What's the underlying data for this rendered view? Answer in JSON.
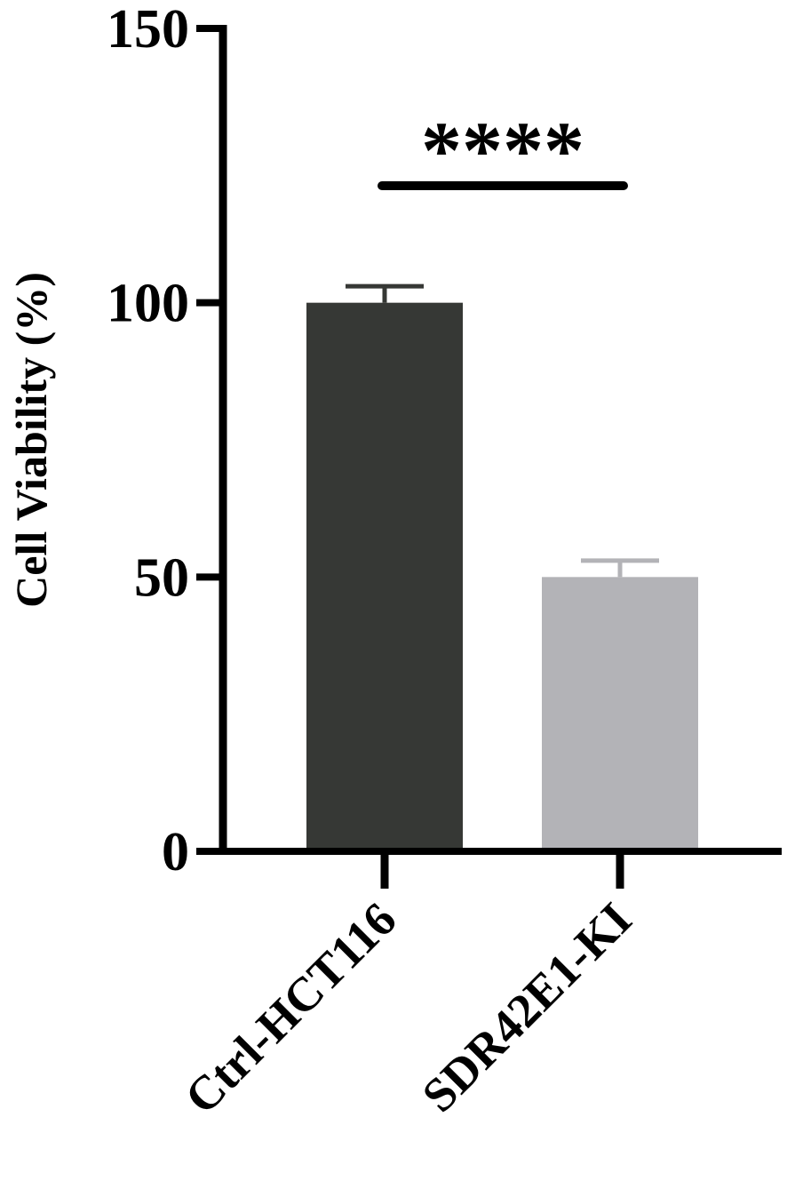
{
  "chart_data": {
    "type": "bar",
    "title": "",
    "xlabel": "",
    "ylabel": "Cell Viability (%)",
    "ylim": [
      0,
      150
    ],
    "yticks": [
      0,
      50,
      100,
      150
    ],
    "categories": [
      "Ctrl-HCT116",
      "SDR42E1-KI"
    ],
    "values": [
      100,
      50
    ],
    "errors": [
      3,
      3
    ],
    "bar_colors": [
      "#363835",
      "#b3b3b7"
    ],
    "grid": false,
    "legend": "none",
    "significance": {
      "label": "****",
      "between": [
        0,
        1
      ]
    }
  }
}
